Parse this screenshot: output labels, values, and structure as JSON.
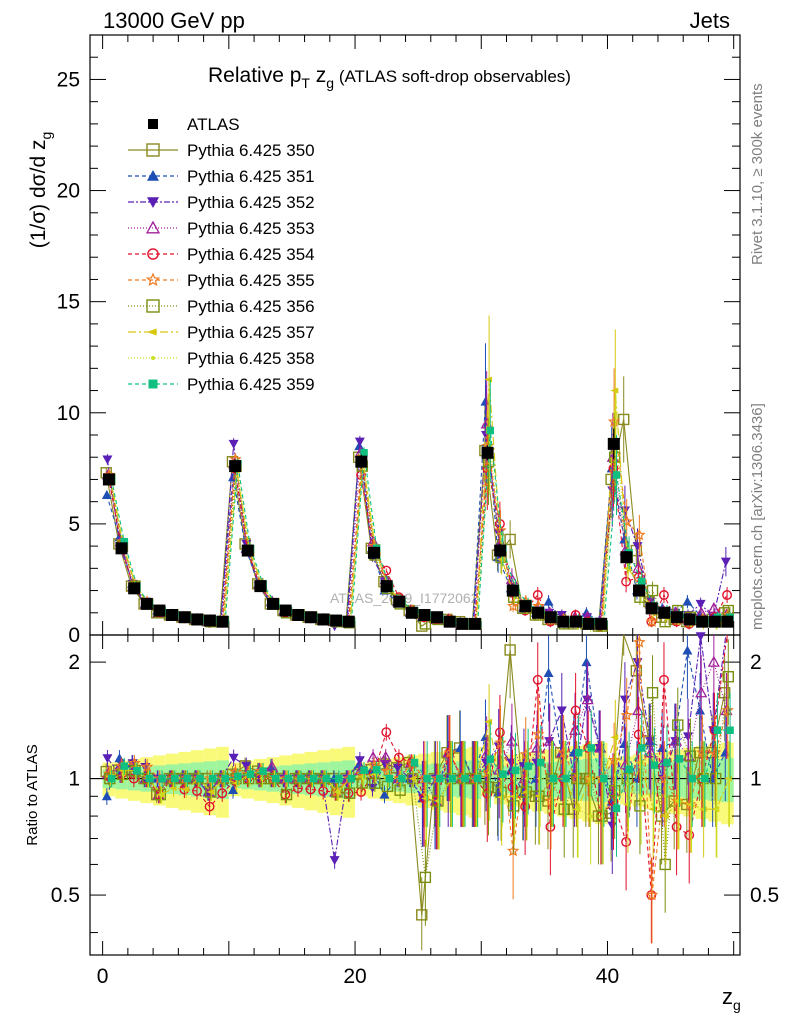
{
  "header": {
    "left": "13000 GeV pp",
    "right": "Jets"
  },
  "plot_title": {
    "main": "Relative p",
    "sub_T": "T",
    "mid": " z",
    "sub_g": "g",
    "rest": " (ATLAS soft-drop observables)"
  },
  "y_label_top": "(1/σ) dσ/d z",
  "y_label_top_sub": "g",
  "y_label_bottom": "Ratio to ATLAS",
  "x_label": "z",
  "x_label_sub": "g",
  "watermark": "ATLAS_2019_I1772062",
  "side_text_1": "Rivet 3.1.10, ≥ 300k events",
  "side_text_2": "mcplots.cern.ch [arXiv:1306.3436]",
  "legend": [
    {
      "label": "ATLAS",
      "color": "#000000",
      "marker": "filled-square",
      "dash": ""
    },
    {
      "label": "Pythia 6.425 350",
      "color": "#8a8a1e",
      "marker": "open-square",
      "dash": ""
    },
    {
      "label": "Pythia 6.425 351",
      "color": "#1f4fb4",
      "marker": "filled-triangle-up",
      "dash": "4,3"
    },
    {
      "label": "Pythia 6.425 352",
      "color": "#5a1fb4",
      "marker": "filled-triangle-down",
      "dash": "6,2,2,2"
    },
    {
      "label": "Pythia 6.425 353",
      "color": "#a0209a",
      "marker": "open-triangle-up",
      "dash": "1,2"
    },
    {
      "label": "Pythia 6.425 354",
      "color": "#e0102a",
      "marker": "open-circle",
      "dash": "4,3"
    },
    {
      "label": "Pythia 6.425 355",
      "color": "#ef7a20",
      "marker": "open-star",
      "dash": "4,3"
    },
    {
      "label": "Pythia 6.425 356",
      "color": "#7a8f10",
      "marker": "open-square",
      "dash": "1,2"
    },
    {
      "label": "Pythia 6.425 357",
      "color": "#d8c810",
      "marker": "filled-triangle-left",
      "dash": "8,3,2,3"
    },
    {
      "label": "Pythia 6.425 358",
      "color": "#c8e020",
      "marker": "small-dot",
      "dash": "1,2"
    },
    {
      "label": "Pythia 6.425 359",
      "color": "#10c080",
      "marker": "filled-square-small",
      "dash": "4,3"
    }
  ],
  "chart_data": {
    "type": "scatter",
    "xlabel": "z_g",
    "ylabel": "(1/σ) dσ/d z_g",
    "xlim": [
      -1,
      50.5
    ],
    "ylim_top": [
      0,
      27
    ],
    "ylim_ratio": [
      0.35,
      2.35
    ],
    "x_ticks": [
      0,
      20,
      40
    ],
    "y_ticks_top": [
      0,
      5,
      10,
      15,
      20,
      25
    ],
    "y_ticks_ratio": [
      0.5,
      1,
      2
    ],
    "x": [
      0.5,
      1.5,
      2.5,
      3.5,
      4.5,
      5.5,
      6.5,
      7.5,
      8.5,
      9.5,
      10.5,
      11.5,
      12.5,
      13.5,
      14.5,
      15.5,
      16.5,
      17.5,
      18.5,
      19.5,
      20.5,
      21.5,
      22.5,
      23.5,
      24.5,
      25.5,
      26.5,
      27.5,
      28.5,
      29.5,
      30.5,
      31.5,
      32.5,
      33.5,
      34.5,
      35.5,
      36.5,
      37.5,
      38.5,
      39.5,
      40.5,
      41.5,
      42.5,
      43.5,
      44.5,
      45.5,
      46.5,
      47.5,
      48.5,
      49.5
    ],
    "atlas_values": [
      7.0,
      3.9,
      2.1,
      1.4,
      1.1,
      0.9,
      0.8,
      0.7,
      0.65,
      0.6,
      7.6,
      3.8,
      2.2,
      1.4,
      1.1,
      0.9,
      0.8,
      0.7,
      0.65,
      0.6,
      7.8,
      3.7,
      2.2,
      1.5,
      1.0,
      0.9,
      0.8,
      0.6,
      0.5,
      0.5,
      8.2,
      3.8,
      2.0,
      1.3,
      1.0,
      0.8,
      0.6,
      0.6,
      0.5,
      0.5,
      8.6,
      3.5,
      2.0,
      1.2,
      1.0,
      0.8,
      0.7,
      0.6,
      0.6,
      0.6
    ],
    "series": [
      {
        "name": "Pythia 6.425 350",
        "values": [
          7.3,
          4.1,
          2.2,
          1.4,
          1.0,
          0.9,
          0.8,
          0.7,
          0.65,
          0.6,
          7.8,
          4.1,
          2.3,
          1.4,
          1.1,
          0.9,
          0.8,
          0.7,
          0.65,
          0.6,
          8.0,
          3.9,
          2.4,
          1.6,
          1.1,
          0.4,
          0.8,
          0.7,
          0.6,
          0.5,
          8.3,
          3.6,
          4.3,
          1.2,
          0.9,
          0.7,
          0.7,
          0.5,
          0.5,
          0.4,
          7.0,
          9.7,
          3.8,
          1.5,
          0.8,
          0.7,
          0.6,
          0.7,
          0.7,
          1.0
        ]
      },
      {
        "name": "Pythia 6.425 351",
        "values": [
          6.3,
          4.4,
          2.3,
          1.4,
          1.1,
          0.9,
          0.8,
          0.7,
          0.6,
          0.6,
          7.1,
          3.9,
          2.3,
          1.5,
          1.1,
          0.9,
          0.8,
          0.7,
          0.65,
          0.6,
          8.5,
          3.9,
          2.0,
          1.5,
          1.0,
          0.8,
          0.7,
          0.7,
          0.6,
          0.5,
          10.5,
          3.5,
          2.1,
          1.2,
          1.0,
          1.5,
          0.7,
          0.7,
          1.0,
          0.6,
          7.5,
          4.3,
          2.0,
          1.5,
          1.2,
          1.0,
          1.5,
          0.9,
          0.6,
          0.7
        ]
      },
      {
        "name": "Pythia 6.425 352",
        "values": [
          7.9,
          4.0,
          2.3,
          1.5,
          1.1,
          0.9,
          0.8,
          0.7,
          0.6,
          0.6,
          8.6,
          4.1,
          2.2,
          1.4,
          1.1,
          0.9,
          0.8,
          0.7,
          0.4,
          0.6,
          8.7,
          3.5,
          2.4,
          1.6,
          1.0,
          0.8,
          0.8,
          0.6,
          0.5,
          0.5,
          9.0,
          4.6,
          2.2,
          1.4,
          1.1,
          1.0,
          0.9,
          0.6,
          0.8,
          0.6,
          6.5,
          5.6,
          4.0,
          1.5,
          1.0,
          1.0,
          0.9,
          1.4,
          0.8,
          3.3
        ]
      },
      {
        "name": "Pythia 6.425 353",
        "values": [
          7.2,
          4.2,
          2.2,
          1.4,
          1.0,
          0.9,
          0.8,
          0.7,
          0.6,
          0.6,
          7.7,
          3.9,
          2.3,
          1.5,
          1.1,
          0.9,
          0.8,
          0.7,
          0.6,
          0.6,
          8.2,
          4.2,
          2.5,
          1.5,
          1.1,
          0.9,
          0.7,
          0.7,
          0.5,
          0.5,
          9.5,
          4.0,
          2.5,
          1.3,
          1.2,
          1.0,
          0.7,
          0.8,
          0.8,
          0.6,
          8.0,
          3.8,
          3.0,
          1.4,
          1.1,
          1.0,
          0.8,
          1.0,
          1.2,
          0.9
        ]
      },
      {
        "name": "Pythia 6.425 354",
        "values": [
          7.1,
          4.0,
          2.1,
          1.4,
          1.0,
          0.9,
          0.75,
          0.65,
          0.55,
          0.55,
          7.5,
          3.8,
          2.2,
          1.4,
          1.0,
          0.85,
          0.75,
          0.65,
          0.6,
          0.55,
          7.2,
          3.8,
          2.9,
          1.7,
          1.1,
          0.8,
          0.7,
          0.7,
          0.5,
          0.5,
          7.5,
          5.0,
          1.9,
          1.1,
          1.8,
          0.6,
          0.6,
          0.9,
          0.6,
          0.4,
          7.5,
          2.4,
          2.6,
          0.6,
          1.8,
          0.6,
          0.5,
          0.6,
          0.8,
          1.8
        ]
      },
      {
        "name": "Pythia 6.425 355",
        "values": [
          7.2,
          4.2,
          2.3,
          1.5,
          1.1,
          0.9,
          0.8,
          0.7,
          0.65,
          0.6,
          7.9,
          3.9,
          2.3,
          1.4,
          1.1,
          0.9,
          0.8,
          0.7,
          0.6,
          0.6,
          8.0,
          4.0,
          2.3,
          1.5,
          1.1,
          0.9,
          0.8,
          0.7,
          0.5,
          0.5,
          8.5,
          4.7,
          1.3,
          1.5,
          1.3,
          0.7,
          0.7,
          0.6,
          0.5,
          0.5,
          9.6,
          5.1,
          4.5,
          0.6,
          1.0,
          0.7,
          0.6,
          0.7,
          0.7,
          0.9
        ]
      },
      {
        "name": "Pythia 6.425 356",
        "values": [
          7.0,
          4.0,
          2.2,
          1.4,
          1.0,
          0.9,
          0.8,
          0.7,
          0.6,
          0.6,
          7.6,
          3.8,
          2.2,
          1.4,
          1.0,
          0.9,
          0.8,
          0.7,
          0.6,
          0.55,
          7.6,
          3.6,
          2.1,
          1.4,
          1.0,
          0.5,
          0.7,
          0.6,
          0.5,
          0.5,
          7.8,
          3.5,
          1.7,
          1.2,
          0.9,
          0.8,
          0.5,
          0.6,
          0.5,
          0.4,
          8.0,
          3.5,
          1.7,
          2.0,
          0.6,
          1.1,
          0.8,
          0.6,
          0.6,
          1.1
        ]
      },
      {
        "name": "Pythia 6.425 357",
        "values": [
          7.1,
          4.1,
          2.2,
          1.4,
          1.0,
          0.85,
          0.75,
          0.7,
          0.6,
          0.6,
          7.4,
          3.9,
          2.3,
          1.4,
          1.1,
          0.9,
          0.8,
          0.7,
          0.6,
          0.6,
          7.9,
          3.8,
          2.2,
          1.5,
          1.0,
          0.8,
          0.7,
          0.6,
          0.5,
          0.5,
          11.5,
          3.4,
          1.8,
          1.2,
          0.9,
          0.8,
          0.6,
          0.5,
          0.5,
          0.5,
          11.0,
          3.0,
          2.2,
          1.0,
          0.8,
          0.7,
          0.6,
          0.5,
          0.5,
          0.6
        ]
      },
      {
        "name": "Pythia 6.425 358",
        "values": [
          7.0,
          4.0,
          2.2,
          1.4,
          1.0,
          0.9,
          0.8,
          0.7,
          0.65,
          0.6,
          7.6,
          3.8,
          2.2,
          1.4,
          1.1,
          0.9,
          0.8,
          0.7,
          0.6,
          0.6,
          7.8,
          3.8,
          2.2,
          1.5,
          1.1,
          0.8,
          0.7,
          0.6,
          0.5,
          0.5,
          8.5,
          3.8,
          2.0,
          1.3,
          1.0,
          0.8,
          0.6,
          0.5,
          0.4,
          0.4,
          8.8,
          3.4,
          1.8,
          1.1,
          0.9,
          0.7,
          0.6,
          0.6,
          0.5,
          0.6
        ]
      },
      {
        "name": "Pythia 6.425 359",
        "values": [
          7.0,
          4.2,
          2.2,
          1.4,
          1.1,
          0.9,
          0.8,
          0.7,
          0.65,
          0.6,
          7.7,
          3.9,
          2.3,
          1.4,
          1.1,
          0.9,
          0.8,
          0.7,
          0.65,
          0.6,
          8.2,
          3.9,
          2.2,
          1.5,
          1.1,
          0.9,
          0.8,
          0.6,
          0.5,
          0.5,
          9.2,
          3.9,
          2.1,
          1.4,
          1.1,
          0.8,
          0.6,
          0.7,
          0.6,
          0.5,
          7.2,
          3.7,
          2.4,
          1.3,
          1.1,
          0.9,
          0.7,
          0.6,
          0.8,
          0.8
        ]
      }
    ]
  }
}
